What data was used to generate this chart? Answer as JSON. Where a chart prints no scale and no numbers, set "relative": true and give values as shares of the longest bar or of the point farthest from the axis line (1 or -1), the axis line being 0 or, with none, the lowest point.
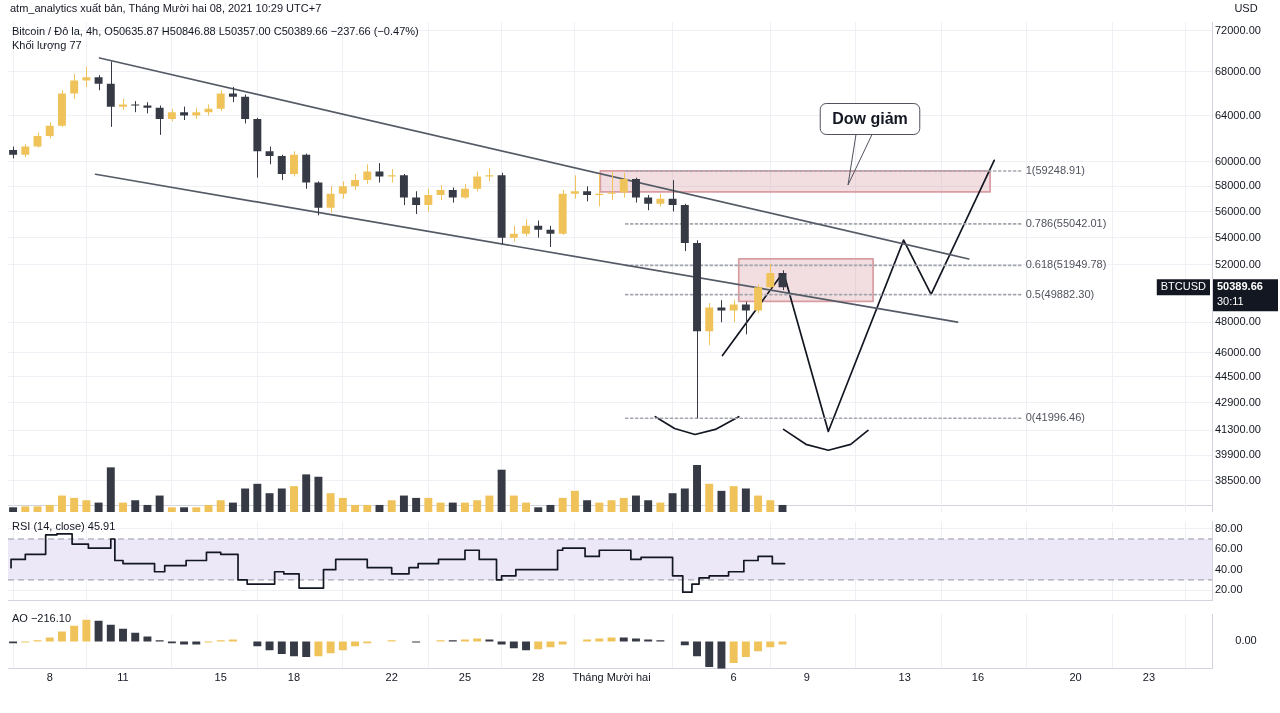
{
  "chart_data": [
    {
      "type": "candlestick",
      "title": "atm_analytics xuất bản, Tháng Mười hai 08, 2021 10:29 UTC+7",
      "ylabel": "USD",
      "annotations": [
        "Bitcoin / Đô la, 4h, O50635.87 H50846.88 L50357.00 C50389.66 −237.66 (−0.47%)",
        "Khối lượng 77",
        "Dow giảm",
        "BTCUSD",
        "50389.66",
        "30:11"
      ],
      "x": [
        "2021-11-06T12:00",
        "2021-11-07",
        "2021-11-07T12:00",
        "2021-11-08",
        "2021-11-08T12:00",
        "2021-11-09",
        "2021-11-09T12:00",
        "2021-11-10",
        "2021-11-10T12:00",
        "2021-11-11",
        "2021-11-11T12:00",
        "2021-11-12",
        "2021-11-12T12:00",
        "2021-11-13",
        "2021-11-13T12:00",
        "2021-11-14",
        "2021-11-14T12:00",
        "2021-11-15",
        "2021-11-15T12:00",
        "2021-11-16",
        "2021-11-16T12:00",
        "2021-11-17",
        "2021-11-17T12:00",
        "2021-11-18",
        "2021-11-18T12:00",
        "2021-11-19",
        "2021-11-19T12:00",
        "2021-11-20",
        "2021-11-20T12:00",
        "2021-11-21",
        "2021-11-21T12:00",
        "2021-11-22",
        "2021-11-22T12:00",
        "2021-11-23",
        "2021-11-23T12:00",
        "2021-11-24",
        "2021-11-24T12:00",
        "2021-11-25",
        "2021-11-25T12:00",
        "2021-11-26",
        "2021-11-26T12:00",
        "2021-11-27",
        "2021-11-27T12:00",
        "2021-11-28",
        "2021-11-28T12:00",
        "2021-11-29",
        "2021-11-29T12:00",
        "2021-11-30",
        "2021-11-30T12:00",
        "2021-12-01",
        "2021-12-01T12:00",
        "2021-12-02",
        "2021-12-02T12:00",
        "2021-12-03",
        "2021-12-03T12:00",
        "2021-12-04",
        "2021-12-04T12:00",
        "2021-12-05",
        "2021-12-05T12:00",
        "2021-12-06",
        "2021-12-06T12:00",
        "2021-12-07",
        "2021-12-07T12:00",
        "2021-12-08"
      ],
      "ohlc": [
        [
          61000,
          61300,
          60300,
          60600
        ],
        [
          60600,
          61500,
          60400,
          61300
        ],
        [
          61300,
          62500,
          61200,
          62200
        ],
        [
          62200,
          63400,
          62000,
          63100
        ],
        [
          63100,
          66300,
          63000,
          66000
        ],
        [
          66000,
          67800,
          65500,
          67200
        ],
        [
          67200,
          68500,
          66600,
          67500
        ],
        [
          67500,
          67700,
          66300,
          66900
        ],
        [
          66900,
          69000,
          63000,
          64800
        ],
        [
          64800,
          65500,
          64500,
          65000
        ],
        [
          65000,
          65300,
          64300,
          64900
        ],
        [
          64900,
          65200,
          64200,
          64700
        ],
        [
          64700,
          64900,
          62300,
          63700
        ],
        [
          63700,
          64600,
          63500,
          64300
        ],
        [
          64300,
          64800,
          63600,
          64000
        ],
        [
          64000,
          64700,
          63700,
          64300
        ],
        [
          64300,
          65000,
          64000,
          64600
        ],
        [
          64600,
          66300,
          64400,
          66000
        ],
        [
          66000,
          66600,
          65200,
          65700
        ],
        [
          65700,
          65900,
          63300,
          63700
        ],
        [
          63700,
          63800,
          58700,
          60900
        ],
        [
          60900,
          61300,
          59800,
          60500
        ],
        [
          60500,
          60600,
          58500,
          59000
        ],
        [
          59000,
          60900,
          58800,
          60600
        ],
        [
          60600,
          60700,
          57800,
          58300
        ],
        [
          58300,
          58400,
          55700,
          56300
        ],
        [
          56300,
          58000,
          55900,
          57400
        ],
        [
          57400,
          58400,
          57000,
          58000
        ],
        [
          58000,
          59000,
          57700,
          58500
        ],
        [
          58500,
          59800,
          58200,
          59200
        ],
        [
          59200,
          59900,
          58300,
          58800
        ],
        [
          58800,
          59400,
          58300,
          58900
        ],
        [
          58900,
          59000,
          56500,
          57100
        ],
        [
          57100,
          57600,
          55800,
          56500
        ],
        [
          56500,
          57800,
          56000,
          57300
        ],
        [
          57300,
          58100,
          56900,
          57700
        ],
        [
          57700,
          57900,
          56700,
          57100
        ],
        [
          57100,
          58200,
          57000,
          57800
        ],
        [
          57800,
          59200,
          57600,
          58800
        ],
        [
          58800,
          59500,
          58400,
          58900
        ],
        [
          58900,
          59100,
          53500,
          54000
        ],
        [
          54000,
          54900,
          53700,
          54300
        ],
        [
          54300,
          55400,
          54100,
          54900
        ],
        [
          54900,
          55300,
          54000,
          54600
        ],
        [
          54600,
          54900,
          53300,
          54300
        ],
        [
          54300,
          57700,
          54200,
          57400
        ],
        [
          57400,
          58900,
          57000,
          57600
        ],
        [
          57600,
          58000,
          56800,
          57300
        ],
        [
          57300,
          59000,
          56400,
          57400
        ],
        [
          57400,
          59200,
          56900,
          57500
        ],
        [
          57500,
          59100,
          57100,
          58600
        ],
        [
          58600,
          58700,
          56700,
          57100
        ],
        [
          57100,
          57300,
          56100,
          56600
        ],
        [
          56600,
          57400,
          56400,
          57000
        ],
        [
          57000,
          58500,
          56000,
          56500
        ],
        [
          56500,
          56600,
          53000,
          53600
        ],
        [
          53600,
          53800,
          41996.46,
          47400
        ],
        [
          47400,
          49300,
          46500,
          49000
        ],
        [
          49000,
          49500,
          48000,
          48800
        ],
        [
          48800,
          49500,
          48000,
          49200
        ],
        [
          49200,
          49400,
          47200,
          48800
        ],
        [
          48800,
          50600,
          48600,
          50400
        ],
        [
          50400,
          52050,
          50300,
          51400
        ],
        [
          51400,
          51600,
          50200,
          50389.66
        ]
      ],
      "colors": [
        "#363a45",
        "#f0c35a",
        "#f0c35a",
        "#f0c35a",
        "#f0c35a",
        "#f0c35a",
        "#f0c35a",
        "#363a45",
        "#363a45",
        "#f0c35a",
        "#363a45",
        "#363a45",
        "#363a45",
        "#f0c35a",
        "#363a45",
        "#f0c35a",
        "#f0c35a",
        "#f0c35a",
        "#363a45",
        "#363a45",
        "#363a45",
        "#363a45",
        "#363a45",
        "#f0c35a",
        "#363a45",
        "#363a45",
        "#f0c35a",
        "#f0c35a",
        "#f0c35a",
        "#f0c35a",
        "#363a45",
        "#f0c35a",
        "#363a45",
        "#363a45",
        "#f0c35a",
        "#f0c35a",
        "#363a45",
        "#f0c35a",
        "#f0c35a",
        "#f0c35a",
        "#363a45",
        "#f0c35a",
        "#f0c35a",
        "#363a45",
        "#363a45",
        "#f0c35a",
        "#f0c35a",
        "#363a45",
        "#f0c35a",
        "#f0c35a",
        "#f0c35a",
        "#363a45",
        "#363a45",
        "#f0c35a",
        "#363a45",
        "#363a45",
        "#363a45",
        "#f0c35a",
        "#363a45",
        "#f0c35a",
        "#363a45",
        "#f0c35a",
        "#f0c35a",
        "#363a45"
      ],
      "series": [
        {
          "type": "area",
          "x": [
            "2021-11-30T13:00",
            "2021-12-16T12:00",
            "2021-12-16T12:00",
            "2021-11-30T13:00",
            "2021-11-30T13:00"
          ],
          "values": [
            59250,
            59250,
            57550,
            57550,
            59250
          ],
          "color": "#d99ca2"
        },
        {
          "type": "area",
          "x": [
            "2021-12-06T05:00",
            "2021-12-11T17:00",
            "2021-12-11T17:00",
            "2021-12-06T05:00",
            "2021-12-06T05:00"
          ],
          "values": [
            52420,
            52420,
            49420,
            49420,
            52420
          ],
          "color": "#d99ca2"
        },
        {
          "type": "line",
          "x": [
            "2021-11-10T01:00",
            "2021-12-15T15:00"
          ],
          "values": [
            69340,
            52420
          ],
          "color": "#555b66"
        },
        {
          "type": "line",
          "x": [
            "2021-11-09T21:00",
            "2021-12-15T04:00"
          ],
          "values": [
            58980,
            48010
          ],
          "color": "#555b66"
        },
        {
          "type": "line",
          "name": "1(59248.91)",
          "x": [
            "2021-12-01T14:00",
            "2021-12-17T18:00"
          ],
          "values": [
            59248.91,
            59248.91
          ],
          "color": "#a3a6af",
          "line_style": "dotted"
        },
        {
          "type": "line",
          "name": "0.786(55042.01)",
          "x": [
            "2021-12-01T14:00",
            "2021-12-17T18:00"
          ],
          "values": [
            55042.01,
            55042.01
          ],
          "color": "#a3a6af",
          "line_style": "dotted"
        },
        {
          "type": "line",
          "name": "0.618(51949.78)",
          "x": [
            "2021-12-01T14:00",
            "2021-12-17T18:00"
          ],
          "values": [
            51949.78,
            51949.78
          ],
          "color": "#a3a6af",
          "line_style": "dotted"
        },
        {
          "type": "line",
          "name": "0.5(49882.30)",
          "x": [
            "2021-12-01T14:00",
            "2021-12-17T18:00"
          ],
          "values": [
            49882.3,
            49882.3
          ],
          "color": "#a3a6af",
          "line_style": "dotted"
        },
        {
          "type": "line",
          "name": "0(41996.46)",
          "x": [
            "2021-12-01T14:00",
            "2021-12-17T18:00"
          ],
          "values": [
            41996.46,
            41996.46
          ],
          "color": "#a3a6af",
          "line_style": "dotted"
        },
        {
          "type": "line",
          "x": [
            "2021-12-05T13:00",
            "2021-12-07T23:00"
          ],
          "values": [
            45830,
            51280
          ],
          "color": "#131722"
        },
        {
          "type": "line",
          "x": [
            "2021-12-08T03:00",
            "2021-12-09T21:00",
            "2021-12-12T23:00",
            "2021-12-14T02:00",
            "2021-12-16T16:00"
          ],
          "values": [
            50930,
            41230,
            53810,
            49900,
            60130
          ],
          "color": "#131722"
        },
        {
          "type": "line",
          "x": [
            "2021-12-02T19:00",
            "2021-12-03T14:00",
            "2021-12-04T10:00",
            "2021-12-05T06:00",
            "2021-12-06T05:00"
          ],
          "values": [
            42090,
            41400,
            41060,
            41350,
            42090
          ],
          "color": "#131722"
        },
        {
          "type": "line",
          "x": [
            "2021-12-08T01:00",
            "2021-12-08T23:00",
            "2021-12-09T21:00",
            "2021-12-10T19:00",
            "2021-12-11T12:00"
          ],
          "values": [
            41350,
            40500,
            40170,
            40500,
            41290
          ],
          "color": "#131722"
        }
      ],
      "xlim": [
        "2021-11-06T07:00",
        "2021-12-25T14:00"
      ],
      "xticks": [
        "2021-11-08",
        "2021-11-11",
        "2021-11-15",
        "2021-11-18",
        "2021-11-22",
        "2021-11-25",
        "2021-11-28",
        "2021-12-01",
        "2021-12-06",
        "2021-12-09",
        "2021-12-13",
        "2021-12-16",
        "2021-12-20",
        "2021-12-23"
      ],
      "ylim": [
        37200,
        72900
      ],
      "yticks": [
        {
          "value": 38500,
          "label": "38500.00"
        },
        {
          "value": 39900,
          "label": "39900.00"
        },
        {
          "value": 41300,
          "label": "41300.00"
        },
        {
          "value": 42900,
          "label": "42900.00"
        },
        {
          "value": 44500,
          "label": "44500.00"
        },
        {
          "value": 46000,
          "label": "46000.00"
        },
        {
          "value": 48000,
          "label": "48000.00"
        },
        {
          "value": 52000,
          "label": "52000.00"
        },
        {
          "value": 54000,
          "label": "54000.00"
        },
        {
          "value": 56000,
          "label": "56000.00"
        },
        {
          "value": 58000,
          "label": "58000.00"
        },
        {
          "value": 60000,
          "label": "60000.00"
        },
        {
          "value": 64000,
          "label": "64000.00"
        },
        {
          "value": 68000,
          "label": "68000.00"
        },
        {
          "value": 72000,
          "label": "72000.00"
        }
      ],
      "log": true,
      "grid": true,
      "tick_labels": "y"
    },
    {
      "type": "bar",
      "relative": true,
      "tick_labels": false,
      "x": [
        "2021-11-06T12:00",
        "2021-11-07",
        "2021-11-07T12:00",
        "2021-11-08",
        "2021-11-08T12:00",
        "2021-11-09",
        "2021-11-09T12:00",
        "2021-11-10",
        "2021-11-10T12:00",
        "2021-11-11",
        "2021-11-11T12:00",
        "2021-11-12",
        "2021-11-12T12:00",
        "2021-11-13",
        "2021-11-13T12:00",
        "2021-11-14",
        "2021-11-14T12:00",
        "2021-11-15",
        "2021-11-15T12:00",
        "2021-11-16",
        "2021-11-16T12:00",
        "2021-11-17",
        "2021-11-17T12:00",
        "2021-11-18",
        "2021-11-18T12:00",
        "2021-11-19",
        "2021-11-19T12:00",
        "2021-11-20",
        "2021-11-20T12:00",
        "2021-11-21",
        "2021-11-21T12:00",
        "2021-11-22",
        "2021-11-22T12:00",
        "2021-11-23",
        "2021-11-23T12:00",
        "2021-11-24",
        "2021-11-24T12:00",
        "2021-11-25",
        "2021-11-25T12:00",
        "2021-11-26",
        "2021-11-26T12:00",
        "2021-11-27",
        "2021-11-27T12:00",
        "2021-11-28",
        "2021-11-28T12:00",
        "2021-11-29",
        "2021-11-29T12:00",
        "2021-11-30",
        "2021-11-30T12:00",
        "2021-12-01",
        "2021-12-01T12:00",
        "2021-12-02",
        "2021-12-02T12:00",
        "2021-12-03",
        "2021-12-03T12:00",
        "2021-12-04",
        "2021-12-04T12:00",
        "2021-12-05",
        "2021-12-05T12:00",
        "2021-12-06",
        "2021-12-06T12:00",
        "2021-12-07",
        "2021-12-07T12:00",
        "2021-12-08"
      ],
      "values": [
        0.1,
        0.12,
        0.12,
        0.15,
        0.35,
        0.3,
        0.25,
        0.2,
        0.95,
        0.2,
        0.25,
        0.15,
        0.35,
        0.1,
        0.1,
        0.1,
        0.15,
        0.25,
        0.2,
        0.5,
        0.6,
        0.4,
        0.5,
        0.55,
        0.8,
        0.75,
        0.4,
        0.3,
        0.15,
        0.15,
        0.15,
        0.25,
        0.35,
        0.3,
        0.3,
        0.2,
        0.2,
        0.2,
        0.25,
        0.35,
        0.9,
        0.35,
        0.2,
        0.1,
        0.15,
        0.3,
        0.45,
        0.25,
        0.2,
        0.25,
        0.3,
        0.35,
        0.25,
        0.2,
        0.4,
        0.5,
        1,
        0.6,
        0.45,
        0.55,
        0.5,
        0.35,
        0.25,
        0.15
      ],
      "colors": [
        "#363a45",
        "#f0c35a",
        "#f0c35a",
        "#f0c35a",
        "#f0c35a",
        "#f0c35a",
        "#f0c35a",
        "#363a45",
        "#363a45",
        "#f0c35a",
        "#363a45",
        "#363a45",
        "#363a45",
        "#f0c35a",
        "#363a45",
        "#f0c35a",
        "#f0c35a",
        "#f0c35a",
        "#363a45",
        "#363a45",
        "#363a45",
        "#363a45",
        "#363a45",
        "#f0c35a",
        "#363a45",
        "#363a45",
        "#f0c35a",
        "#f0c35a",
        "#f0c35a",
        "#f0c35a",
        "#363a45",
        "#f0c35a",
        "#363a45",
        "#363a45",
        "#f0c35a",
        "#f0c35a",
        "#363a45",
        "#f0c35a",
        "#f0c35a",
        "#f0c35a",
        "#363a45",
        "#f0c35a",
        "#f0c35a",
        "#363a45",
        "#363a45",
        "#f0c35a",
        "#f0c35a",
        "#363a45",
        "#f0c35a",
        "#f0c35a",
        "#f0c35a",
        "#363a45",
        "#363a45",
        "#f0c35a",
        "#363a45",
        "#363a45",
        "#363a45",
        "#f0c35a",
        "#363a45",
        "#f0c35a",
        "#363a45",
        "#f0c35a",
        "#f0c35a",
        "#363a45"
      ],
      "xlim": [
        "2021-11-06T07:00",
        "2021-12-25T14:00"
      ],
      "xticks": [
        "2021-11-08",
        "2021-11-11",
        "2021-11-15",
        "2021-11-18",
        "2021-11-22",
        "2021-11-25",
        "2021-11-28",
        "2021-12-01",
        "2021-12-06",
        "2021-12-09",
        "2021-12-13",
        "2021-12-16",
        "2021-12-20",
        "2021-12-23"
      ],
      "grid": "x"
    },
    {
      "type": "step",
      "title": "RSI (14, close) 45.91",
      "color": "#131722",
      "x": [
        "2021-11-06T10:00",
        "2021-11-07",
        "2021-11-07T20:00",
        "2021-11-08T07:00",
        "2021-11-08T22:00",
        "2021-11-09T14:00",
        "2021-11-10T12:00",
        "2021-11-10T16:00",
        "2021-11-11",
        "2021-11-12T07:00",
        "2021-11-12T17:00",
        "2021-11-13T14:00",
        "2021-11-14T10:00",
        "2021-11-15",
        "2021-11-15T17:00",
        "2021-11-16T02:00",
        "2021-11-17T05:00",
        "2021-11-17T14:00",
        "2021-11-18T05:00",
        "2021-11-19T05:00",
        "2021-11-19T17:00",
        "2021-11-21",
        "2021-11-22",
        "2021-11-22T17:00",
        "2021-11-23T02:00",
        "2021-11-23T22:00",
        "2021-11-25",
        "2021-11-25T14:00",
        "2021-11-26T07:00",
        "2021-11-26T12:00",
        "2021-11-27T02:00",
        "2021-11-28T19:00",
        "2021-11-29",
        "2021-11-29T22:00",
        "2021-11-30T12:00",
        "2021-12-01T19:00",
        "2021-12-02T05:00",
        "2021-12-03T12:00",
        "2021-12-03T22:00",
        "2021-12-04T07:00",
        "2021-12-04T14:00",
        "2021-12-05",
        "2021-12-05T19:00",
        "2021-12-06T10:00",
        "2021-12-07",
        "2021-12-07T14:00",
        "2021-12-08T02:00"
      ],
      "values": [
        42,
        50,
        55,
        74,
        75,
        65,
        61,
        70,
        49,
        46,
        38,
        44,
        49,
        57,
        55,
        30,
        26,
        38,
        36,
        22,
        40,
        50,
        42,
        36,
        42,
        46,
        50,
        59,
        50,
        30,
        34,
        40,
        59,
        61,
        53,
        59,
        50,
        52,
        34,
        18,
        26,
        32,
        34,
        38,
        49,
        53,
        45.91
      ],
      "bands": [
        {
          "axis": "y",
          "from": 30,
          "to": 70,
          "color": "#ede8f7"
        }
      ],
      "ref_lines": [
        {
          "axis": "y",
          "value": 70,
          "line_style": "dashed",
          "color": "#9598a1"
        },
        {
          "axis": "y",
          "value": 30,
          "line_style": "dashed",
          "color": "#9598a1"
        }
      ],
      "xlim": [
        "2021-11-06T07:00",
        "2021-12-25T14:00"
      ],
      "xticks": [
        "2021-11-08",
        "2021-11-11",
        "2021-11-15",
        "2021-11-18",
        "2021-11-22",
        "2021-11-25",
        "2021-11-28",
        "2021-12-01",
        "2021-12-06",
        "2021-12-09",
        "2021-12-13",
        "2021-12-16",
        "2021-12-20",
        "2021-12-23"
      ],
      "ylim": [
        10,
        87
      ],
      "yticks": [
        {
          "value": 20,
          "label": "20.00"
        },
        {
          "value": 40,
          "label": "40.00"
        },
        {
          "value": 60,
          "label": "60.00"
        },
        {
          "value": 80,
          "label": "80.00"
        }
      ],
      "grid": true,
      "tick_labels": "y"
    },
    {
      "type": "bar",
      "relative": true,
      "title": "AO −216.10",
      "annotations": [
        "0.00"
      ],
      "x": [
        "2021-11-06T12:00",
        "2021-11-07",
        "2021-11-07T12:00",
        "2021-11-08",
        "2021-11-08T12:00",
        "2021-11-09",
        "2021-11-09T12:00",
        "2021-11-10",
        "2021-11-10T12:00",
        "2021-11-11",
        "2021-11-11T12:00",
        "2021-11-12",
        "2021-11-12T12:00",
        "2021-11-13",
        "2021-11-13T12:00",
        "2021-11-14",
        "2021-11-14T12:00",
        "2021-11-15",
        "2021-11-15T12:00",
        "2021-11-16",
        "2021-11-16T12:00",
        "2021-11-17",
        "2021-11-17T12:00",
        "2021-11-18",
        "2021-11-18T12:00",
        "2021-11-19",
        "2021-11-19T12:00",
        "2021-11-20",
        "2021-11-20T12:00",
        "2021-11-21",
        "2021-11-21T12:00",
        "2021-11-22",
        "2021-11-22T12:00",
        "2021-11-23",
        "2021-11-23T12:00",
        "2021-11-24",
        "2021-11-24T12:00",
        "2021-11-25",
        "2021-11-25T12:00",
        "2021-11-26",
        "2021-11-26T12:00",
        "2021-11-27",
        "2021-11-27T12:00",
        "2021-11-28",
        "2021-11-28T12:00",
        "2021-11-29",
        "2021-11-29T12:00",
        "2021-11-30",
        "2021-11-30T12:00",
        "2021-12-01",
        "2021-12-01T12:00",
        "2021-12-02",
        "2021-12-02T12:00",
        "2021-12-03",
        "2021-12-03T12:00",
        "2021-12-04",
        "2021-12-04T12:00",
        "2021-12-05",
        "2021-12-05T12:00",
        "2021-12-06",
        "2021-12-06T12:00",
        "2021-12-07",
        "2021-12-07T12:00",
        "2021-12-08"
      ],
      "values": [
        -0.07,
        -0.04,
        0.04,
        0.14,
        0.36,
        0.57,
        0.79,
        0.75,
        0.61,
        0.46,
        0.32,
        0.18,
        0.04,
        -0.07,
        -0.11,
        -0.11,
        -0.04,
        0.04,
        0.07,
        0,
        -0.18,
        -0.32,
        -0.46,
        -0.54,
        -0.57,
        -0.54,
        -0.43,
        -0.32,
        -0.18,
        -0.07,
        0,
        0.04,
        0,
        -0.04,
        0,
        0.04,
        0.04,
        0.07,
        0.11,
        0.07,
        -0.11,
        -0.25,
        -0.32,
        -0.29,
        -0.21,
        -0.11,
        0,
        0.07,
        0.11,
        0.14,
        0.14,
        0.11,
        0.07,
        0.04,
        0,
        -0.14,
        -0.54,
        -0.93,
        -1,
        -0.79,
        -0.57,
        -0.36,
        -0.21,
        -0.11
      ],
      "colors": [
        "#363a45",
        "#f0c35a",
        "#f0c35a",
        "#f0c35a",
        "#f0c35a",
        "#f0c35a",
        "#f0c35a",
        "#363a45",
        "#363a45",
        "#363a45",
        "#363a45",
        "#363a45",
        "#363a45",
        "#363a45",
        "#363a45",
        "#363a45",
        "#f0c35a",
        "#f0c35a",
        "#f0c35a",
        "#363a45",
        "#363a45",
        "#363a45",
        "#363a45",
        "#363a45",
        "#363a45",
        "#f0c35a",
        "#f0c35a",
        "#f0c35a",
        "#f0c35a",
        "#f0c35a",
        "#f0c35a",
        "#f0c35a",
        "#363a45",
        "#363a45",
        "#f0c35a",
        "#f0c35a",
        "#363a45",
        "#f0c35a",
        "#f0c35a",
        "#363a45",
        "#363a45",
        "#363a45",
        "#363a45",
        "#f0c35a",
        "#f0c35a",
        "#f0c35a",
        "#f0c35a",
        "#f0c35a",
        "#f0c35a",
        "#f0c35a",
        "#363a45",
        "#363a45",
        "#363a45",
        "#363a45",
        "#363a45",
        "#363a45",
        "#363a45",
        "#363a45",
        "#363a45",
        "#f0c35a",
        "#f0c35a",
        "#f0c35a",
        "#f0c35a",
        "#f0c35a"
      ],
      "xlim": [
        "2021-11-06T07:00",
        "2021-12-25T14:00"
      ],
      "xticks": [
        {
          "value": "2021-11-08",
          "label": "8"
        },
        {
          "value": "2021-11-11",
          "label": "11"
        },
        {
          "value": "2021-11-15",
          "label": "15"
        },
        {
          "value": "2021-11-18",
          "label": "18"
        },
        {
          "value": "2021-11-22",
          "label": "22"
        },
        {
          "value": "2021-11-25",
          "label": "25"
        },
        {
          "value": "2021-11-28",
          "label": "28"
        },
        {
          "value": "2021-12-01",
          "label": "Tháng Mười hai"
        },
        {
          "value": "2021-12-06",
          "label": "6"
        },
        {
          "value": "2021-12-09",
          "label": "9"
        },
        {
          "value": "2021-12-13",
          "label": "13"
        },
        {
          "value": "2021-12-16",
          "label": "16"
        },
        {
          "value": "2021-12-20",
          "label": "20"
        },
        {
          "value": "2021-12-23",
          "label": "23"
        }
      ],
      "grid": "x",
      "tick_labels": "x"
    }
  ]
}
